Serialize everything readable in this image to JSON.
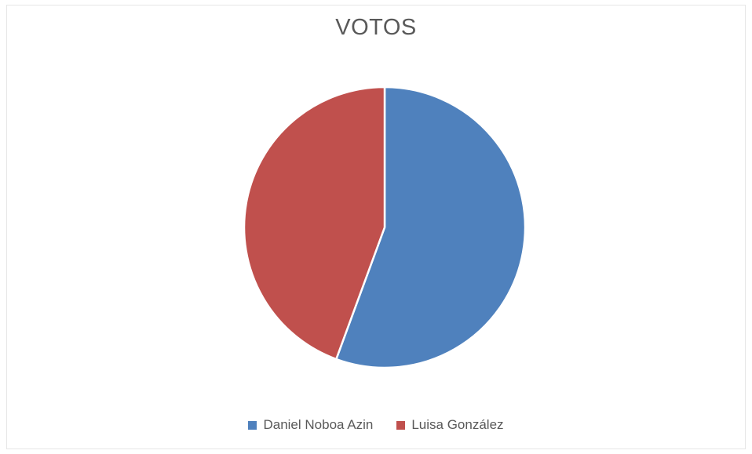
{
  "chart_data": {
    "type": "pie",
    "title": "VOTOS",
    "categories": [
      "Daniel Noboa Azin",
      "Luisa González"
    ],
    "values": [
      55.6,
      44.4
    ],
    "colors": [
      "#4f81bd",
      "#c0504d"
    ],
    "legend": "bottom"
  }
}
